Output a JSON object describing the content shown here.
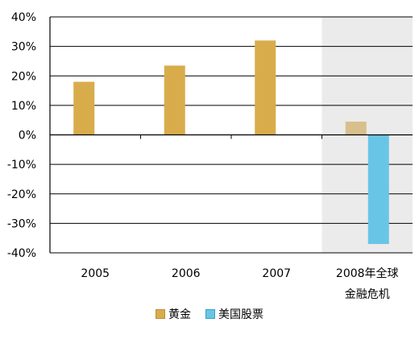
{
  "chart_data": {
    "type": "bar",
    "categories": [
      "2005",
      "2006",
      "2007",
      "2008年全球\n金融危机"
    ],
    "series": [
      {
        "name": "黄金",
        "values": [
          18,
          23.5,
          32,
          4.5
        ],
        "color": "#D9AC4B"
      },
      {
        "name": "美国股票",
        "values": [
          null,
          null,
          null,
          -37
        ],
        "color": "#69C5E6"
      }
    ],
    "highlighted_category": "2008年全球\n金融危机",
    "highlight_background": "#EBEBEB",
    "highlighted_gold_color": "#D8C08C",
    "y_ticks": [
      "40%",
      "30%",
      "20%",
      "10%",
      "0%",
      "-10%",
      "-20%",
      "-30%",
      "-40%"
    ],
    "ylim": [
      -40,
      40
    ],
    "y_unit": "%",
    "grid": true,
    "legend_position": "bottom",
    "title": "",
    "xlabel": "",
    "ylabel": ""
  }
}
